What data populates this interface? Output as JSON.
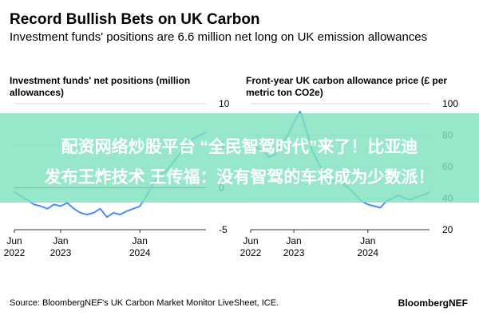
{
  "header": {
    "title": "Record Bullish Bets on UK Carbon",
    "subtitle": "Investment funds' positions are 6.6 million net long on UK emission allowances"
  },
  "overlay": {
    "line1": "配资网络炒股平台 “全民智驾时代”来了！比亚迪",
    "line2": "发布王炸技术 王传福：没有智驾的车将成为少数派！"
  },
  "footer": {
    "source": "Source: BloombergNEF's UK Carbon Market Monitor LiveSheet, ICE.",
    "brand": "BloombergNEF"
  },
  "colors": {
    "line": "#4a8ff3",
    "zero_line": "#222222",
    "grid": "#d9d9d9"
  },
  "chart_data": [
    {
      "type": "line",
      "title": "Investment funds' net positions (million allowances)",
      "x_ticks": [
        "Jun 2022",
        "Jan 2023",
        "Jan 2024"
      ],
      "y_ticks": [
        10,
        5,
        0,
        -5
      ],
      "ylim": [
        -5,
        10
      ],
      "y_axis_side": "right",
      "zero_line": true,
      "series": [
        {
          "x": [
            "2022-06",
            "2022-07",
            "2022-08",
            "2022-09",
            "2022-10",
            "2022-11",
            "2022-12",
            "2023-01",
            "2023-02",
            "2023-03",
            "2023-04",
            "2023-05",
            "2023-06",
            "2023-07",
            "2023-08",
            "2023-09",
            "2023-10",
            "2023-11",
            "2023-12",
            "2024-01",
            "2024-02",
            "2024-03",
            "2024-04",
            "2024-05",
            "2024-06",
            "2024-07",
            "2024-08",
            "2024-09",
            "2024-10",
            "2024-11"
          ],
          "y": [
            -0.5,
            -1.0,
            -1.5,
            -2.0,
            -2.2,
            -2.5,
            -2.0,
            -2.2,
            -1.8,
            -2.5,
            -3.0,
            -3.2,
            -3.0,
            -2.5,
            -3.5,
            -3.0,
            -3.2,
            -2.8,
            -2.5,
            -2.2,
            -1.0,
            0.5,
            1.5,
            2.0,
            3.0,
            4.0,
            5.0,
            5.8,
            6.2,
            6.6
          ]
        }
      ]
    },
    {
      "type": "line",
      "title": "Front-year UK carbon allowance price (£ per metric ton CO2e)",
      "x_ticks": [
        "Jun 2022",
        "Jan 2023",
        "Jan 2024"
      ],
      "y_ticks": [
        100,
        80,
        60,
        40,
        20
      ],
      "ylim": [
        20,
        100
      ],
      "y_axis_side": "right",
      "series": [
        {
          "x": [
            "2022-06",
            "2022-07",
            "2022-08",
            "2022-09",
            "2022-10",
            "2022-11",
            "2022-12",
            "2023-01",
            "2023-02",
            "2023-03",
            "2023-04",
            "2023-05",
            "2023-06",
            "2023-07",
            "2023-08",
            "2023-09",
            "2023-10",
            "2023-11",
            "2023-12",
            "2024-01",
            "2024-02",
            "2024-03",
            "2024-04",
            "2024-05",
            "2024-06",
            "2024-07",
            "2024-08",
            "2024-09",
            "2024-10",
            "2024-11"
          ],
          "y": [
            75,
            72,
            70,
            66,
            68,
            74,
            80,
            88,
            95,
            84,
            70,
            62,
            55,
            50,
            52,
            49,
            46,
            42,
            38,
            36,
            35,
            34,
            38,
            40,
            42,
            40,
            39,
            41,
            42,
            44
          ]
        }
      ]
    }
  ]
}
